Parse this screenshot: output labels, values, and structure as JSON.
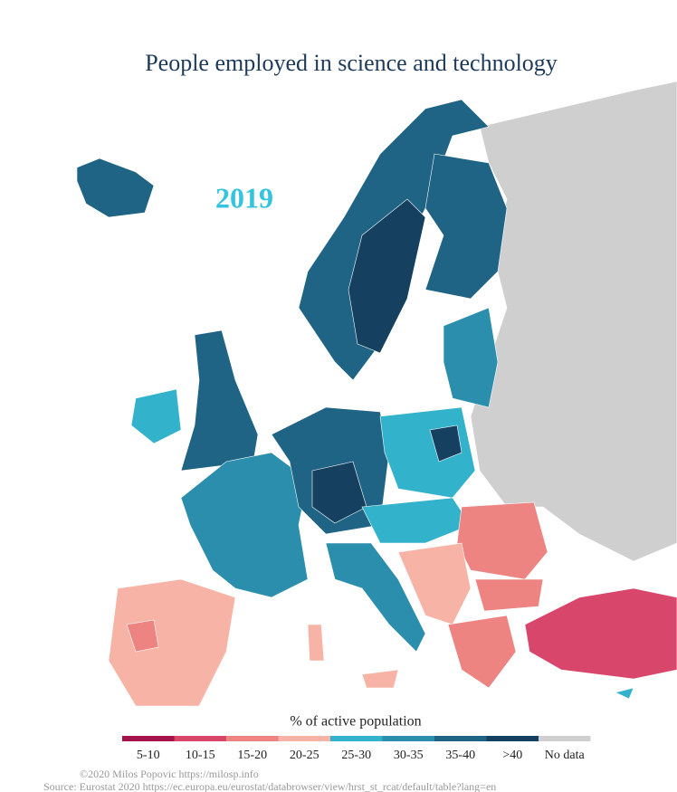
{
  "title": "People employed in science and technology",
  "year": "2019",
  "legend": {
    "title": "% of active population",
    "classes": [
      {
        "label": "5-10",
        "color": "#a3134a"
      },
      {
        "label": "10-15",
        "color": "#d9466b"
      },
      {
        "label": "15-20",
        "color": "#ee8482"
      },
      {
        "label": "20-25",
        "color": "#f7b4a6"
      },
      {
        "label": "25-30",
        "color": "#33b2cc"
      },
      {
        "label": "30-35",
        "color": "#2a8eac"
      },
      {
        "label": "35-40",
        "color": "#1f6484"
      },
      {
        "label": ">40",
        "color": "#15405f"
      },
      {
        "label": "No data",
        "color": "#cfcfcf"
      }
    ]
  },
  "credits": [
    "©2020 Milos Popovic https://milosp.info",
    "Source: Eurostat 2020 https://ec.europa.eu/eurostat/databrowser/view/hrst_st_rcat/default/table?lang=en"
  ]
}
